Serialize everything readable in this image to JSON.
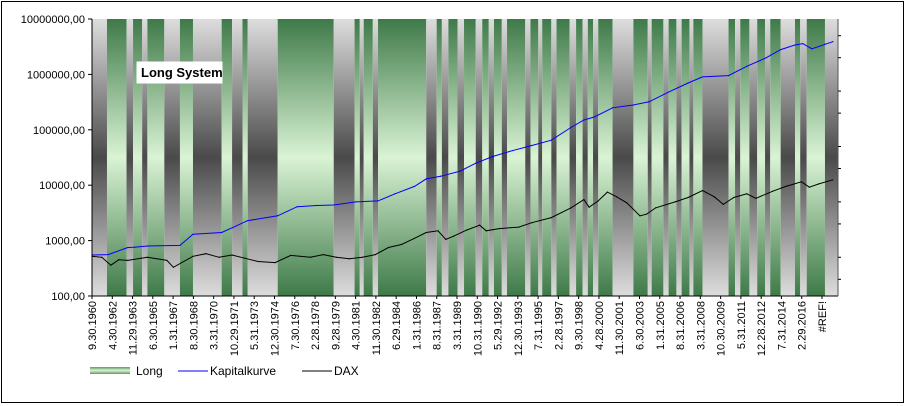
{
  "chart_data": {
    "type": "line",
    "title": "Long System",
    "y_scale": "log",
    "ylim": [
      100,
      10000000
    ],
    "grid": false,
    "legend_position": "bottom-left",
    "y_tick_labels": [
      "10000000,00",
      "1000000,00",
      "100000,00",
      "10000,00",
      "1000,00",
      "100,00"
    ],
    "y_tick_values": [
      10000000,
      1000000,
      100000,
      10000,
      1000,
      100
    ],
    "x_tick_labels": [
      "9.30.1960",
      "4.30.1962",
      "11.29.1963",
      "6.30.1965",
      "1.31.1967",
      "8.30.1968",
      "3.31.1970",
      "10.29.1971",
      "5.31.1973",
      "12.30.1974",
      "7.30.1976",
      "2.28.1978",
      "9.28.1979",
      "4.30.1981",
      "11.30.1982",
      "6.29.1984",
      "1.31.1986",
      "8.31.1987",
      "3.31.1989",
      "10.31.1990",
      "5.29.1992",
      "12.30.1993",
      "7.31.1995",
      "2.28.1997",
      "9.30.1998",
      "4.28.2000",
      "11.30.2001",
      "6.30.2003",
      "1.31.2005",
      "8.31.2006",
      "3.31.2008",
      "10.30.2009",
      "5.31.2011",
      "12.28.2012",
      "7.31.2014",
      "2.29.2016",
      "#REF!"
    ],
    "x_range": [
      1960.75,
      2018.0
    ],
    "regimes": [
      {
        "start": 1960.75,
        "end": 1961.9,
        "state": "out"
      },
      {
        "start": 1961.9,
        "end": 1963.4,
        "state": "long"
      },
      {
        "start": 1963.4,
        "end": 1963.9,
        "state": "out"
      },
      {
        "start": 1963.9,
        "end": 1964.6,
        "state": "long"
      },
      {
        "start": 1964.6,
        "end": 1965.0,
        "state": "out"
      },
      {
        "start": 1965.0,
        "end": 1966.3,
        "state": "long"
      },
      {
        "start": 1966.3,
        "end": 1967.5,
        "state": "out"
      },
      {
        "start": 1967.5,
        "end": 1968.5,
        "state": "long"
      },
      {
        "start": 1968.5,
        "end": 1970.7,
        "state": "out"
      },
      {
        "start": 1970.7,
        "end": 1971.5,
        "state": "long"
      },
      {
        "start": 1971.5,
        "end": 1972.3,
        "state": "out"
      },
      {
        "start": 1972.3,
        "end": 1972.7,
        "state": "long"
      },
      {
        "start": 1972.7,
        "end": 1975.0,
        "state": "out"
      },
      {
        "start": 1975.0,
        "end": 1979.3,
        "state": "long"
      },
      {
        "start": 1979.3,
        "end": 1980.9,
        "state": "out"
      },
      {
        "start": 1980.9,
        "end": 1981.3,
        "state": "long"
      },
      {
        "start": 1981.3,
        "end": 1981.6,
        "state": "out"
      },
      {
        "start": 1981.6,
        "end": 1982.3,
        "state": "long"
      },
      {
        "start": 1982.3,
        "end": 1982.7,
        "state": "out"
      },
      {
        "start": 1982.7,
        "end": 1986.4,
        "state": "long"
      },
      {
        "start": 1986.4,
        "end": 1987.2,
        "state": "out"
      },
      {
        "start": 1987.2,
        "end": 1987.6,
        "state": "long"
      },
      {
        "start": 1987.6,
        "end": 1988.1,
        "state": "out"
      },
      {
        "start": 1988.1,
        "end": 1988.8,
        "state": "long"
      },
      {
        "start": 1988.8,
        "end": 1989.3,
        "state": "out"
      },
      {
        "start": 1989.3,
        "end": 1990.2,
        "state": "long"
      },
      {
        "start": 1990.2,
        "end": 1990.7,
        "state": "out"
      },
      {
        "start": 1990.7,
        "end": 1991.2,
        "state": "long"
      },
      {
        "start": 1991.2,
        "end": 1991.6,
        "state": "out"
      },
      {
        "start": 1991.6,
        "end": 1992.2,
        "state": "long"
      },
      {
        "start": 1992.2,
        "end": 1992.6,
        "state": "out"
      },
      {
        "start": 1992.6,
        "end": 1994.0,
        "state": "long"
      },
      {
        "start": 1994.0,
        "end": 1994.4,
        "state": "out"
      },
      {
        "start": 1994.4,
        "end": 1995.0,
        "state": "long"
      },
      {
        "start": 1995.0,
        "end": 1995.3,
        "state": "out"
      },
      {
        "start": 1995.3,
        "end": 1996.0,
        "state": "long"
      },
      {
        "start": 1996.0,
        "end": 1996.4,
        "state": "out"
      },
      {
        "start": 1996.4,
        "end": 1997.4,
        "state": "long"
      },
      {
        "start": 1997.4,
        "end": 1997.9,
        "state": "out"
      },
      {
        "start": 1997.9,
        "end": 1998.4,
        "state": "long"
      },
      {
        "start": 1998.4,
        "end": 1998.8,
        "state": "out"
      },
      {
        "start": 1998.8,
        "end": 1999.2,
        "state": "long"
      },
      {
        "start": 1999.2,
        "end": 1999.6,
        "state": "out"
      },
      {
        "start": 1999.6,
        "end": 2000.7,
        "state": "long"
      },
      {
        "start": 2000.7,
        "end": 2002.3,
        "state": "out"
      },
      {
        "start": 2002.3,
        "end": 2003.4,
        "state": "long"
      },
      {
        "start": 2003.4,
        "end": 2003.7,
        "state": "out"
      },
      {
        "start": 2003.7,
        "end": 2004.6,
        "state": "long"
      },
      {
        "start": 2004.6,
        "end": 2005.0,
        "state": "out"
      },
      {
        "start": 2005.0,
        "end": 2005.6,
        "state": "long"
      },
      {
        "start": 2005.6,
        "end": 2006.0,
        "state": "out"
      },
      {
        "start": 2006.0,
        "end": 2006.6,
        "state": "long"
      },
      {
        "start": 2006.6,
        "end": 2006.9,
        "state": "out"
      },
      {
        "start": 2006.9,
        "end": 2007.6,
        "state": "long"
      },
      {
        "start": 2007.6,
        "end": 2009.6,
        "state": "out"
      },
      {
        "start": 2009.6,
        "end": 2010.1,
        "state": "long"
      },
      {
        "start": 2010.1,
        "end": 2010.5,
        "state": "out"
      },
      {
        "start": 2010.5,
        "end": 2011.2,
        "state": "long"
      },
      {
        "start": 2011.2,
        "end": 2011.8,
        "state": "out"
      },
      {
        "start": 2011.8,
        "end": 2012.4,
        "state": "long"
      },
      {
        "start": 2012.4,
        "end": 2012.8,
        "state": "out"
      },
      {
        "start": 2012.8,
        "end": 2013.6,
        "state": "long"
      },
      {
        "start": 2013.6,
        "end": 2014.7,
        "state": "out"
      },
      {
        "start": 2014.7,
        "end": 2015.1,
        "state": "long"
      },
      {
        "start": 2015.1,
        "end": 2015.6,
        "state": "out"
      },
      {
        "start": 2015.6,
        "end": 2017.0,
        "state": "long"
      },
      {
        "start": 2017.0,
        "end": 2018.0,
        "state": "out"
      }
    ],
    "series": [
      {
        "name": "Kapitalkurve",
        "color": "#0000ff",
        "x": [
          1960.75,
          1962.0,
          1963.5,
          1964.0,
          1965.0,
          1967.5,
          1968.5,
          1970.7,
          1971.5,
          1972.7,
          1975.0,
          1976.5,
          1978.0,
          1979.3,
          1981.0,
          1982.7,
          1984.0,
          1985.5,
          1986.4,
          1987.5,
          1989.0,
          1990.2,
          1991.5,
          1993.0,
          1994.5,
          1996.0,
          1997.5,
          1998.5,
          1999.3,
          2000.7,
          2002.3,
          2003.5,
          2005.0,
          2006.5,
          2007.6,
          2009.6,
          2011.0,
          2012.5,
          2013.6,
          2014.7,
          2015.3,
          2016.0,
          2017.0,
          2017.6
        ],
        "values": [
          550,
          560,
          750,
          760,
          800,
          820,
          1300,
          1400,
          1700,
          2300,
          2800,
          4100,
          4300,
          4400,
          5000,
          5200,
          7000,
          9500,
          13000,
          14500,
          18000,
          25000,
          33000,
          42000,
          52000,
          65000,
          110000,
          150000,
          170000,
          250000,
          280000,
          320000,
          480000,
          700000,
          900000,
          950000,
          1400000,
          2000000,
          2800000,
          3400000,
          3600000,
          2900000,
          3500000,
          3900000
        ]
      },
      {
        "name": "DAX",
        "color": "#000000",
        "x": [
          1960.75,
          1961.5,
          1962.2,
          1962.8,
          1963.5,
          1965.0,
          1966.5,
          1967.0,
          1968.5,
          1969.5,
          1970.5,
          1971.5,
          1972.5,
          1973.5,
          1974.8,
          1976.0,
          1977.5,
          1978.5,
          1979.5,
          1980.5,
          1981.5,
          1982.5,
          1983.5,
          1984.5,
          1985.5,
          1986.4,
          1987.3,
          1987.9,
          1988.5,
          1989.5,
          1990.5,
          1991.0,
          1992.0,
          1993.5,
          1994.5,
          1996.0,
          1997.5,
          1998.5,
          1998.9,
          1999.6,
          2000.3,
          2001.0,
          2001.8,
          2002.8,
          2003.3,
          2004.0,
          2005.5,
          2006.5,
          2007.6,
          2008.5,
          2009.2,
          2010.0,
          2011.0,
          2011.7,
          2013.0,
          2014.0,
          2015.2,
          2015.8,
          2016.5,
          2017.6
        ],
        "values": [
          520,
          500,
          360,
          450,
          440,
          500,
          440,
          330,
          520,
          580,
          500,
          550,
          480,
          420,
          400,
          540,
          500,
          560,
          500,
          470,
          500,
          560,
          750,
          850,
          1100,
          1400,
          1500,
          1050,
          1200,
          1550,
          1900,
          1500,
          1650,
          1750,
          2100,
          2600,
          3900,
          5500,
          4000,
          5200,
          7500,
          6200,
          4800,
          2800,
          3000,
          3900,
          5000,
          6000,
          8000,
          6200,
          4500,
          6000,
          7000,
          5800,
          7800,
          9500,
          11500,
          9200,
          10500,
          12500
        ]
      }
    ],
    "legend": [
      {
        "label": "Long",
        "kind": "swatch"
      },
      {
        "label": "Kapitalkurve",
        "kind": "line",
        "color": "#0000ff"
      },
      {
        "label": "DAX",
        "kind": "line",
        "color": "#000000"
      }
    ]
  }
}
